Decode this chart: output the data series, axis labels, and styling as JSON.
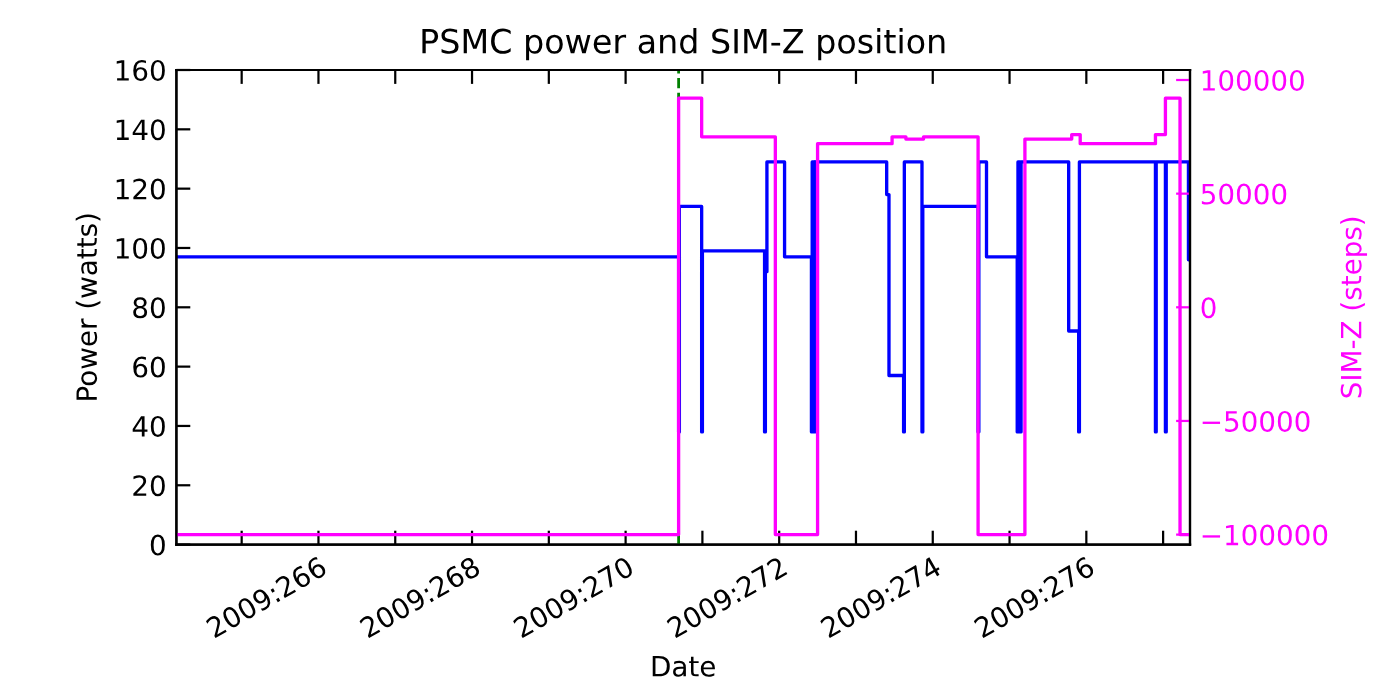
{
  "chart_data": {
    "type": "step",
    "title": "PSMC power and SIM-Z position",
    "xlabel": "Date",
    "ylabel": "Power (watts)",
    "y2label": "SIM-Z (steps)",
    "xlim": [
      "2009-09-21T03:36",
      "2009-10-04T08:24"
    ],
    "xticks": [
      {
        "value": "2009-09-22",
        "label": null
      },
      {
        "value": "2009-09-23",
        "label": "2009:266"
      },
      {
        "value": "2009-09-24",
        "label": null
      },
      {
        "value": "2009-09-25",
        "label": "2009:268"
      },
      {
        "value": "2009-09-26",
        "label": null
      },
      {
        "value": "2009-09-27",
        "label": "2009:270"
      },
      {
        "value": "2009-09-28",
        "label": null
      },
      {
        "value": "2009-09-29",
        "label": "2009:272"
      },
      {
        "value": "2009-09-30",
        "label": null
      },
      {
        "value": "2009-10-01",
        "label": "2009:274"
      },
      {
        "value": "2009-10-02",
        "label": null
      },
      {
        "value": "2009-10-03",
        "label": "2009:276"
      },
      {
        "value": "2009-10-04",
        "label": null
      }
    ],
    "ylim": [
      0,
      160
    ],
    "yticks": [
      0,
      20,
      40,
      60,
      80,
      100,
      120,
      140,
      160
    ],
    "y2lim": [
      -104400,
      104400
    ],
    "y2ticks": [
      {
        "value": -100000,
        "label": "−100000"
      },
      {
        "value": -50000,
        "label": "−50000"
      },
      0,
      50000,
      100000
    ],
    "grid": false,
    "ref_lines": [
      {
        "axis": "x",
        "value": "2009-09-27T16:34",
        "color": "#008000",
        "line_style": "dashed"
      }
    ],
    "series": [
      {
        "color": "#0000ff",
        "axis": "y",
        "x": [
          "2009-09-21T03:36",
          "2009-09-27T16:34",
          "2009-09-27T16:48",
          "2009-09-27T23:46",
          "2009-09-28T00:00",
          "2009-09-28T19:26",
          "2009-09-28T19:41",
          "2009-09-28T20:10",
          "2009-09-29T01:41",
          "2009-09-29T10:05",
          "2009-09-29T10:19",
          "2009-09-29T11:02",
          "2009-09-29T11:17",
          "2009-09-30T09:36",
          "2009-09-30T10:19",
          "2009-09-30T14:53",
          "2009-09-30T15:07",
          "2009-09-30T20:38",
          "2009-09-30T20:53",
          "2009-10-01T14:10",
          "2009-10-01T14:24",
          "2009-10-01T16:48",
          "2009-10-02T02:24",
          "2009-10-02T02:38",
          "2009-10-02T03:22",
          "2009-10-02T03:36",
          "2009-10-02T18:29",
          "2009-10-02T21:36",
          "2009-10-02T21:50",
          "2009-10-03T21:36",
          "2009-10-03T21:50",
          "2009-10-04T00:43",
          "2009-10-04T00:58",
          "2009-10-04T07:55",
          "2009-10-04T08:24"
        ],
        "values": [
          97,
          38,
          114,
          38,
          99,
          38,
          92,
          129,
          97,
          38,
          129,
          38,
          129,
          118,
          57,
          38,
          129,
          38,
          114,
          38,
          129,
          97,
          38,
          129,
          38,
          129,
          72,
          38,
          129,
          38,
          129,
          38,
          129,
          96,
          96
        ]
      },
      {
        "color": "#ff00ff",
        "axis": "y2",
        "x": [
          "2009-09-21T03:36",
          "2009-09-27T16:34",
          "2009-09-27T23:46",
          "2009-09-28T22:48",
          "2009-09-29T12:00",
          "2009-09-30T11:17",
          "2009-09-30T15:36",
          "2009-09-30T21:07",
          "2009-10-01T14:10",
          "2009-10-02T04:48",
          "2009-10-02T19:26",
          "2009-10-02T22:05",
          "2009-10-03T21:36",
          "2009-10-04T00:43",
          "2009-10-04T05:17",
          "2009-10-04T08:24"
        ],
        "values": [
          -100000,
          92000,
          75000,
          -100000,
          72000,
          75000,
          74000,
          75000,
          -100000,
          74000,
          76000,
          72000,
          76000,
          92000,
          -100000,
          -100000
        ]
      }
    ]
  }
}
